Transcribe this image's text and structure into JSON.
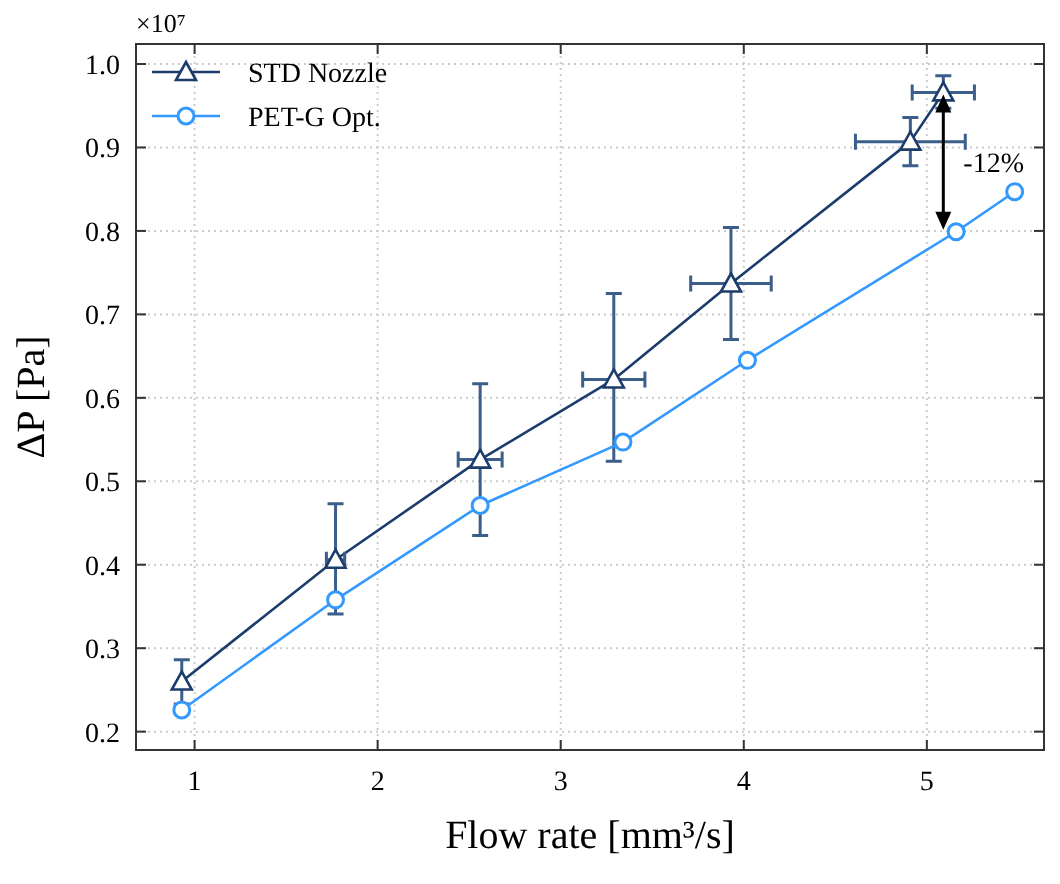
{
  "chart_data": {
    "type": "line",
    "xlabel": "Flow rate [mm³/s]",
    "ylabel": "ΔP [Pa]",
    "xlim": [
      0.68,
      5.64
    ],
    "xticks": [
      1,
      2,
      3,
      4,
      5
    ],
    "ylim": [
      0.178,
      1.024
    ],
    "yticks": [
      0.2,
      0.3,
      0.4,
      0.5,
      0.6,
      0.7,
      0.8,
      0.9,
      {
        "value": 1,
        "label": "1.0"
      }
    ],
    "grid": true,
    "legend": "top left",
    "line_style": "solid",
    "series": [
      {
        "name": "STD Nozzle",
        "color": "#1c3d6b",
        "marker": "triangle",
        "x": [
          0.93,
          1.77,
          2.56,
          3.29,
          3.93,
          4.91,
          5.09
        ],
        "values": [
          0.26,
          0.406,
          0.526,
          0.622,
          0.737,
          0.907,
          0.966
        ],
        "errors": [
          [
            0.233,
            0.286
          ],
          [
            0.341,
            0.473
          ],
          [
            0.435,
            0.617
          ],
          [
            0.524,
            0.725
          ],
          [
            0.67,
            0.804
          ],
          [
            0.878,
            0.936
          ],
          [
            0.947,
            0.986
          ]
        ],
        "xerrors": [
          null,
          [
            1.72,
            1.82
          ],
          [
            2.44,
            2.68
          ],
          [
            3.12,
            3.46
          ],
          [
            3.71,
            4.15
          ],
          [
            4.61,
            5.21
          ],
          [
            4.92,
            5.26
          ]
        ]
      },
      {
        "name": "PET-G Opt.",
        "color": "#3399ff",
        "marker": "circle",
        "x": [
          0.93,
          1.77,
          2.56,
          3.34,
          4.02,
          5.16,
          5.48
        ],
        "values": [
          0.226,
          0.358,
          0.471,
          0.547,
          0.645,
          0.799,
          0.847
        ]
      }
    ],
    "annotations": [
      "×10⁷",
      "-12%"
    ]
  }
}
